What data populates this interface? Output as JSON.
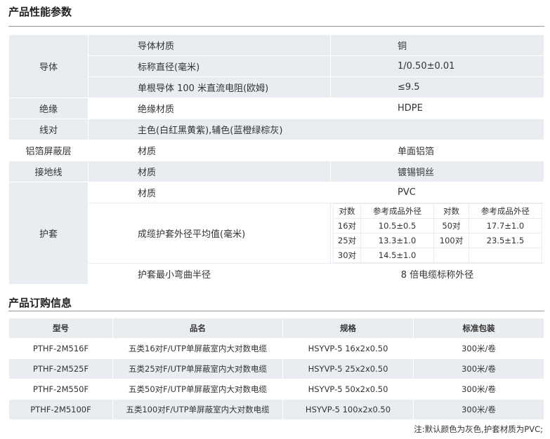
{
  "perf": {
    "title": "产品性能参数",
    "conductor": {
      "group": "导体",
      "r1": [
        "导体材质",
        "铜"
      ],
      "r2": [
        "标称直径(毫米)",
        "1/0.50±0.01"
      ],
      "r3": [
        "单根导体 100 米直流电阻(欧姆)",
        "≤9.5"
      ]
    },
    "insulation": {
      "group": "绝缘",
      "r1": [
        "绝缘材质",
        "HDPE"
      ]
    },
    "pair": {
      "group": "线对",
      "text": "主色(白红黑黄紫),辅色(蓝橙绿棕灰)"
    },
    "foil": {
      "group": "铝箔屏蔽层",
      "r1": [
        "材质",
        "单面铝箔"
      ]
    },
    "ground": {
      "group": "接地线",
      "r1": [
        "材质",
        "镀锡铜丝"
      ]
    },
    "jacket": {
      "group": "护套",
      "r1": [
        "材质",
        "PVC"
      ],
      "r2_label": "成缆护套外径平均值(毫米)",
      "od": {
        "headers": [
          "对数",
          "参考成品外径",
          "对数",
          "参考成品外径"
        ],
        "rows": [
          [
            "16对",
            "10.5±0.5",
            "50对",
            "17.7±1.0"
          ],
          [
            "25对",
            "13.3±1.0",
            "100对",
            "23.5±1.5"
          ],
          [
            "30对",
            "14.5±1.0",
            "",
            ""
          ]
        ]
      },
      "r3": [
        "护套最小弯曲半径",
        "8 倍电缆标称外径"
      ]
    }
  },
  "order": {
    "title": "产品订购信息",
    "headers": [
      "型号",
      "品名",
      "规格",
      "标准包装"
    ],
    "rows": [
      [
        "PTHF-2M516F",
        "五类16对F/UTP单屏蔽室内大对数电缆",
        "HSYVP-5 16x2x0.50",
        "300米/卷"
      ],
      [
        "PTHF-2M525F",
        "五类25对F/UTP单屏蔽室内大对数电缆",
        "HSYVP-5 25x2x0.50",
        "300米/卷"
      ],
      [
        "PTHF-2M550F",
        "五类50对F/UTP单屏蔽室内大对数电缆",
        "HSYVP-5 50x2x0.50",
        "300米/卷"
      ],
      [
        "PTHF-2M5100F",
        "五类100对F/UTP单屏蔽室内大对数电缆",
        "HSYVP-5 100x2x0.50",
        "300米/卷"
      ]
    ],
    "note": "注:默认颜色为灰色,护套材质为PVC;"
  }
}
